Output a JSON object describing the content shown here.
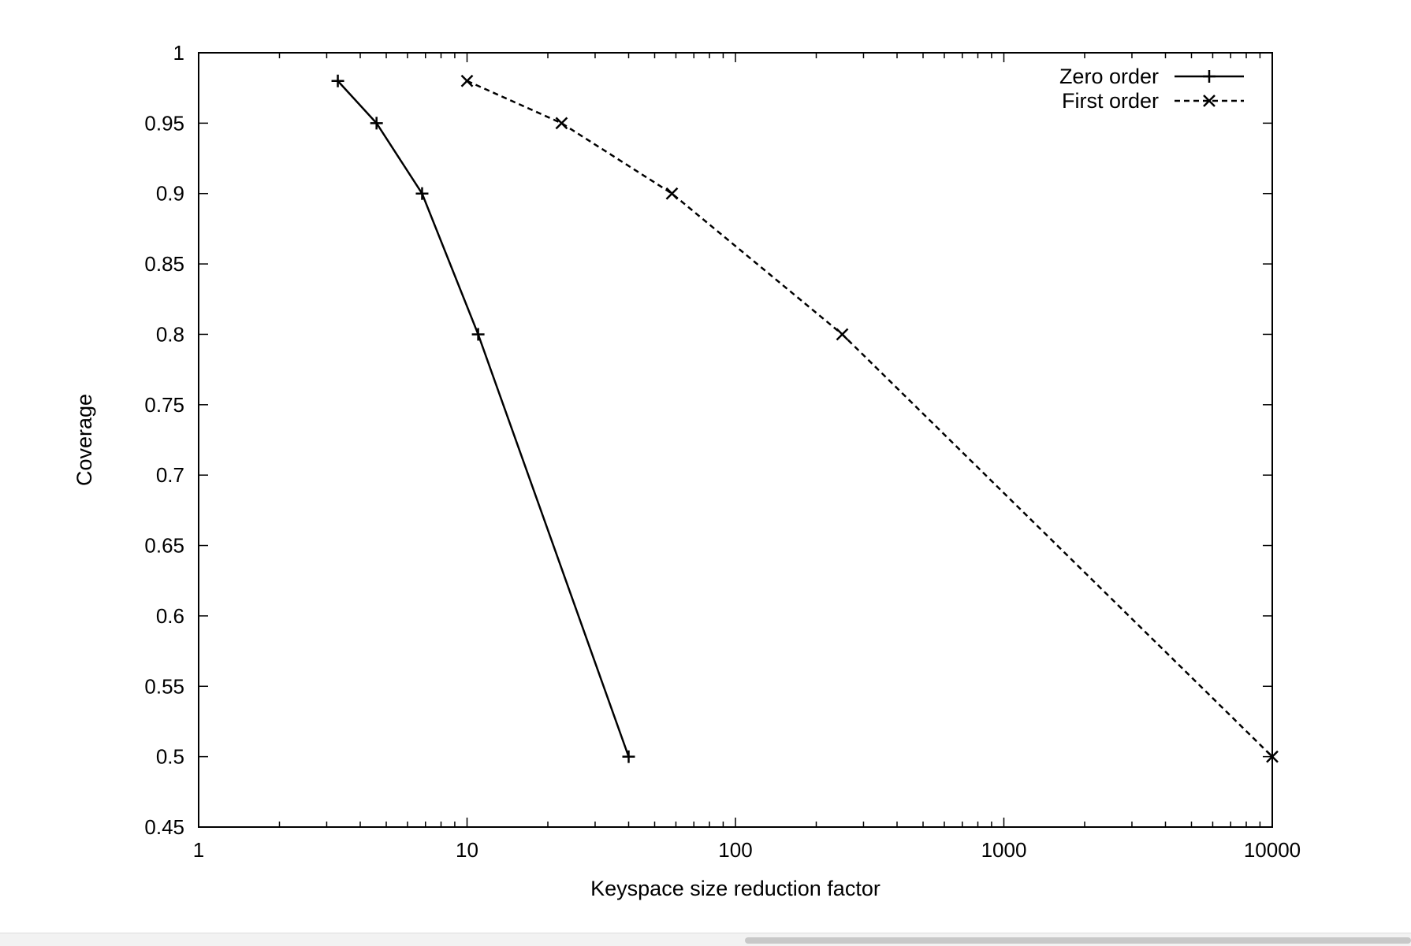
{
  "chart_data": {
    "type": "line",
    "xlabel": "Keyspace size reduction factor",
    "ylabel": "Coverage",
    "xscale": "log",
    "xlim": [
      1,
      10000
    ],
    "ylim": [
      0.45,
      1
    ],
    "xticks": [
      "1",
      "10",
      "100",
      "1000",
      "10000"
    ],
    "yticks": [
      "0.45",
      "0.5",
      "0.55",
      "0.6",
      "0.65",
      "0.7",
      "0.75",
      "0.8",
      "0.85",
      "0.9",
      "0.95",
      "1"
    ],
    "legend_position": "top-right",
    "grid": false,
    "series": [
      {
        "name": "Zero order",
        "line": "solid",
        "marker": "plus",
        "color": "#000000",
        "points": [
          {
            "x": 3.3,
            "y": 0.98
          },
          {
            "x": 4.6,
            "y": 0.95
          },
          {
            "x": 6.8,
            "y": 0.9
          },
          {
            "x": 11,
            "y": 0.8
          },
          {
            "x": 40,
            "y": 0.5
          }
        ]
      },
      {
        "name": "First order",
        "line": "dashed",
        "marker": "cross",
        "color": "#000000",
        "points": [
          {
            "x": 10,
            "y": 0.98
          },
          {
            "x": 22.5,
            "y": 0.95
          },
          {
            "x": 58,
            "y": 0.9
          },
          {
            "x": 250,
            "y": 0.8
          },
          {
            "x": 10000,
            "y": 0.5
          }
        ]
      }
    ]
  }
}
